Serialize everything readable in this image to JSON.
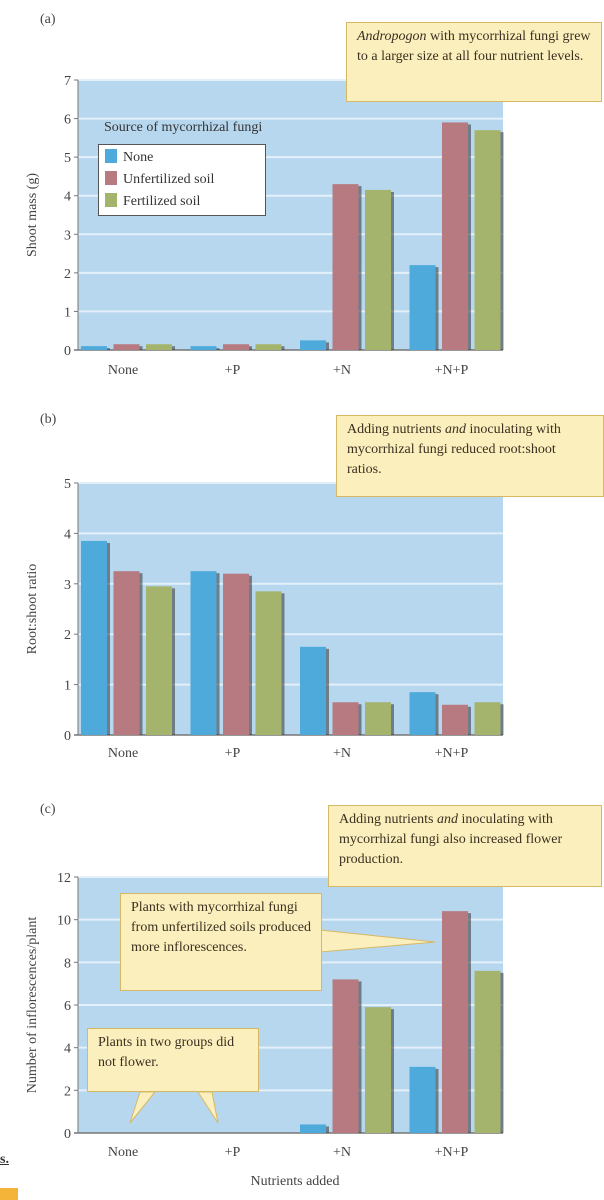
{
  "colors": {
    "None": "#4eaadb",
    "Unfertilized soil": "#b77a80",
    "Fertilized soil": "#a4b46c",
    "plot_bg": "#b7d7ee",
    "callout_bg": "#fbefbd"
  },
  "legend": {
    "title": "Source of mycorrhizal fungi",
    "items": [
      "None",
      "Unfertilized soil",
      "Fertilized soil"
    ]
  },
  "fragment": "s.",
  "chart_data": [
    {
      "type": "bar",
      "panel": "(a)",
      "ylabel": "Shoot mass (g)",
      "xlabel": "",
      "ylim": [
        0,
        7
      ],
      "yticks": [
        "0",
        "1",
        "2",
        "3",
        "4",
        "5",
        "6",
        "7"
      ],
      "categories": [
        "None",
        "+P",
        "+N",
        "+N+P"
      ],
      "series": [
        {
          "name": "None",
          "values": [
            0.1,
            0.1,
            0.25,
            2.2
          ]
        },
        {
          "name": "Unfertilized soil",
          "values": [
            0.15,
            0.15,
            4.3,
            5.9
          ]
        },
        {
          "name": "Fertilized soil",
          "values": [
            0.15,
            0.15,
            4.15,
            5.7
          ]
        }
      ],
      "grid": true,
      "legend_position": "top-left",
      "annotations": [
        {
          "italic": "Andropogon",
          "text": " with mycorrhizal fungi grew to a larger size at all four nutrient levels."
        }
      ]
    },
    {
      "type": "bar",
      "panel": "(b)",
      "ylabel": "Root:shoot ratio",
      "xlabel": "",
      "ylim": [
        0,
        5
      ],
      "yticks": [
        "0",
        "1",
        "2",
        "3",
        "4",
        "5"
      ],
      "categories": [
        "None",
        "+P",
        "+N",
        "+N+P"
      ],
      "series": [
        {
          "name": "None",
          "values": [
            3.85,
            3.25,
            1.75,
            0.85
          ]
        },
        {
          "name": "Unfertilized soil",
          "values": [
            3.25,
            3.2,
            0.65,
            0.6
          ]
        },
        {
          "name": "Fertilized soil",
          "values": [
            2.95,
            2.85,
            0.65,
            0.65
          ]
        }
      ],
      "grid": true,
      "annotations": [
        {
          "pre": "Adding nutrients ",
          "italic": "and",
          "text": " inoculating with mycorrhizal fungi reduced root:shoot ratios."
        }
      ]
    },
    {
      "type": "bar",
      "panel": "(c)",
      "ylabel": "Number of inflorescences/plant",
      "xlabel": "Nutrients added",
      "ylim": [
        0,
        12
      ],
      "yticks": [
        "0",
        "2",
        "4",
        "6",
        "8",
        "10",
        "12"
      ],
      "categories": [
        "None",
        "+P",
        "+N",
        "+N+P"
      ],
      "series": [
        {
          "name": "None",
          "values": [
            0,
            0,
            0.4,
            3.1
          ]
        },
        {
          "name": "Unfertilized soil",
          "values": [
            0,
            0,
            7.2,
            10.4
          ]
        },
        {
          "name": "Fertilized soil",
          "values": [
            0,
            0,
            5.9,
            7.6
          ]
        }
      ],
      "grid": true,
      "annotations": [
        {
          "pre": "Adding nutrients ",
          "italic": "and",
          "text": " inoculating with mycorrhizal fungi also increased flower production."
        },
        {
          "text": "Plants with mycorrhizal fungi from unfertilized soils produced more inflorescences."
        },
        {
          "text": "Plants in two groups did not flower."
        }
      ]
    }
  ]
}
